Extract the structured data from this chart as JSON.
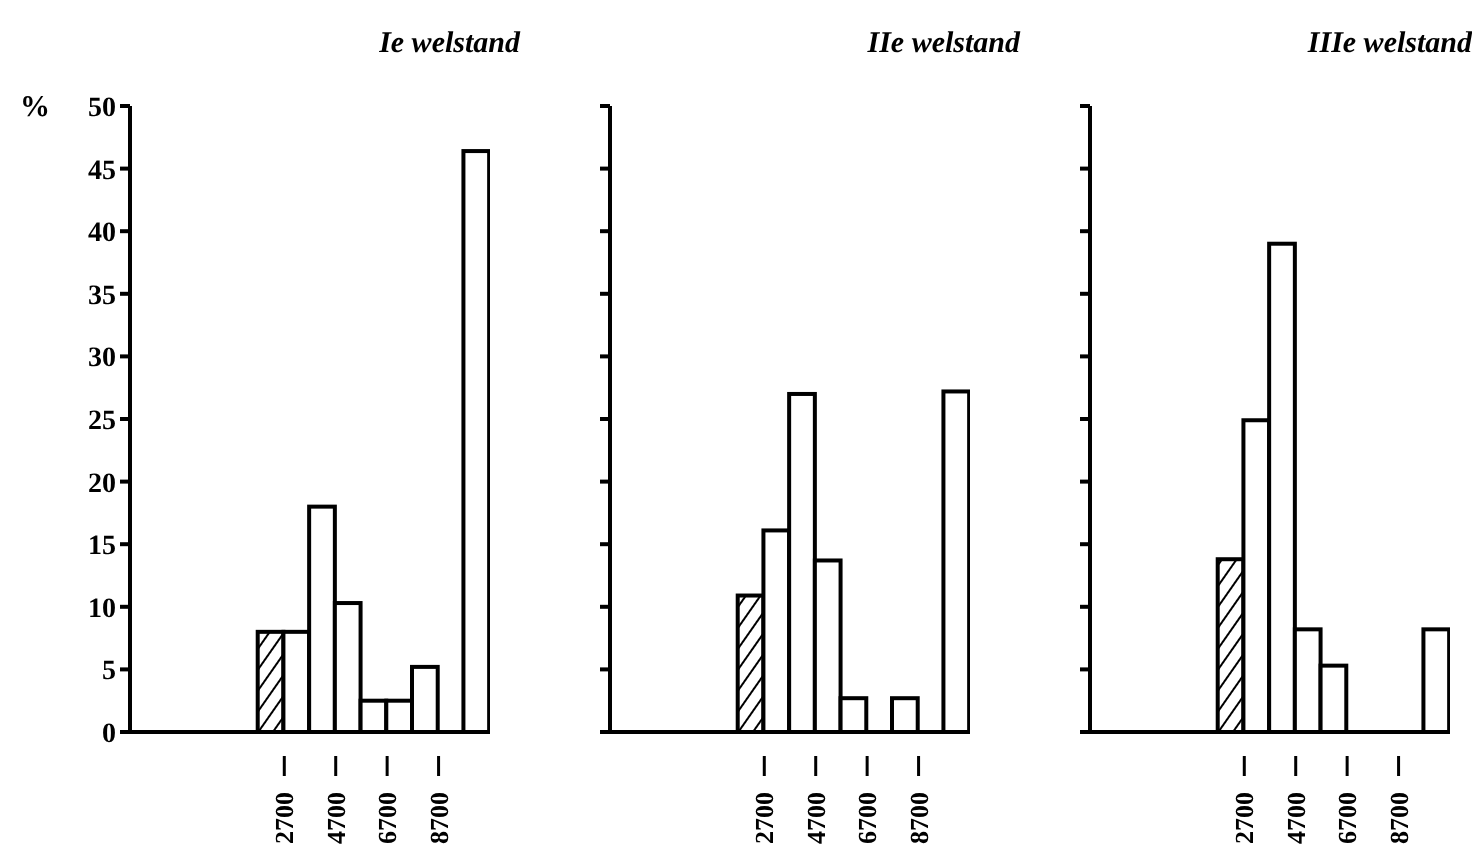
{
  "chart_data": [
    {
      "type": "histogram",
      "title": "Ie welstand",
      "ylabel": "%",
      "bins": [
        1700,
        2700,
        3700,
        4700,
        5700,
        6700,
        7700,
        8700,
        9700,
        10700
      ],
      "values": [
        8,
        8,
        18,
        10.3,
        2.5,
        2.5,
        5.2,
        0,
        46.4
      ],
      "colors": [
        "#000000",
        "#ffffff",
        "#ffffff",
        "#ffffff",
        "#ffffff",
        "#ffffff",
        "#ffffff",
        "#ffffff",
        "#ffffff"
      ],
      "xlim": [
        -3300,
        10700
      ],
      "xticks": [
        2700,
        4700,
        6700,
        8700
      ],
      "ylim": [
        0,
        50
      ],
      "yticks": [
        0,
        5,
        10,
        15,
        20,
        25,
        30,
        35,
        40,
        45,
        50
      ]
    },
    {
      "type": "histogram",
      "title": "IIe welstand",
      "bins": [
        1700,
        2700,
        3700,
        4700,
        5700,
        6700,
        7700,
        8700,
        9700,
        10700
      ],
      "values": [
        10.9,
        16.1,
        27,
        13.7,
        2.7,
        0,
        2.7,
        0,
        27.2
      ],
      "colors": [
        "#000000",
        "#ffffff",
        "#ffffff",
        "#ffffff",
        "#ffffff",
        "#ffffff",
        "#ffffff",
        "#ffffff",
        "#ffffff"
      ],
      "xlim": [
        -3300,
        10700
      ],
      "xticks": [
        2700,
        4700,
        6700,
        8700
      ],
      "ylim": [
        0,
        50
      ],
      "yticks": [
        0,
        5,
        10,
        15,
        20,
        25,
        30,
        35,
        40,
        45,
        50
      ],
      "tick_labels": "x"
    },
    {
      "type": "histogram",
      "title": "IIIe welstand",
      "bins": [
        1700,
        2700,
        3700,
        4700,
        5700,
        6700,
        7700,
        8700,
        9700,
        10700
      ],
      "values": [
        13.8,
        24.9,
        39,
        8.2,
        5.3,
        0,
        0,
        0,
        8.2
      ],
      "colors": [
        "#000000",
        "#ffffff",
        "#ffffff",
        "#ffffff",
        "#ffffff",
        "#ffffff",
        "#ffffff",
        "#ffffff",
        "#ffffff"
      ],
      "xlim": [
        -3300,
        10700
      ],
      "xticks": [
        2700,
        4700,
        6700,
        8700
      ],
      "ylim": [
        0,
        50
      ],
      "yticks": [
        0,
        5,
        10,
        15,
        20,
        25,
        30,
        35,
        40,
        45,
        50
      ],
      "tick_labels": "x"
    }
  ]
}
